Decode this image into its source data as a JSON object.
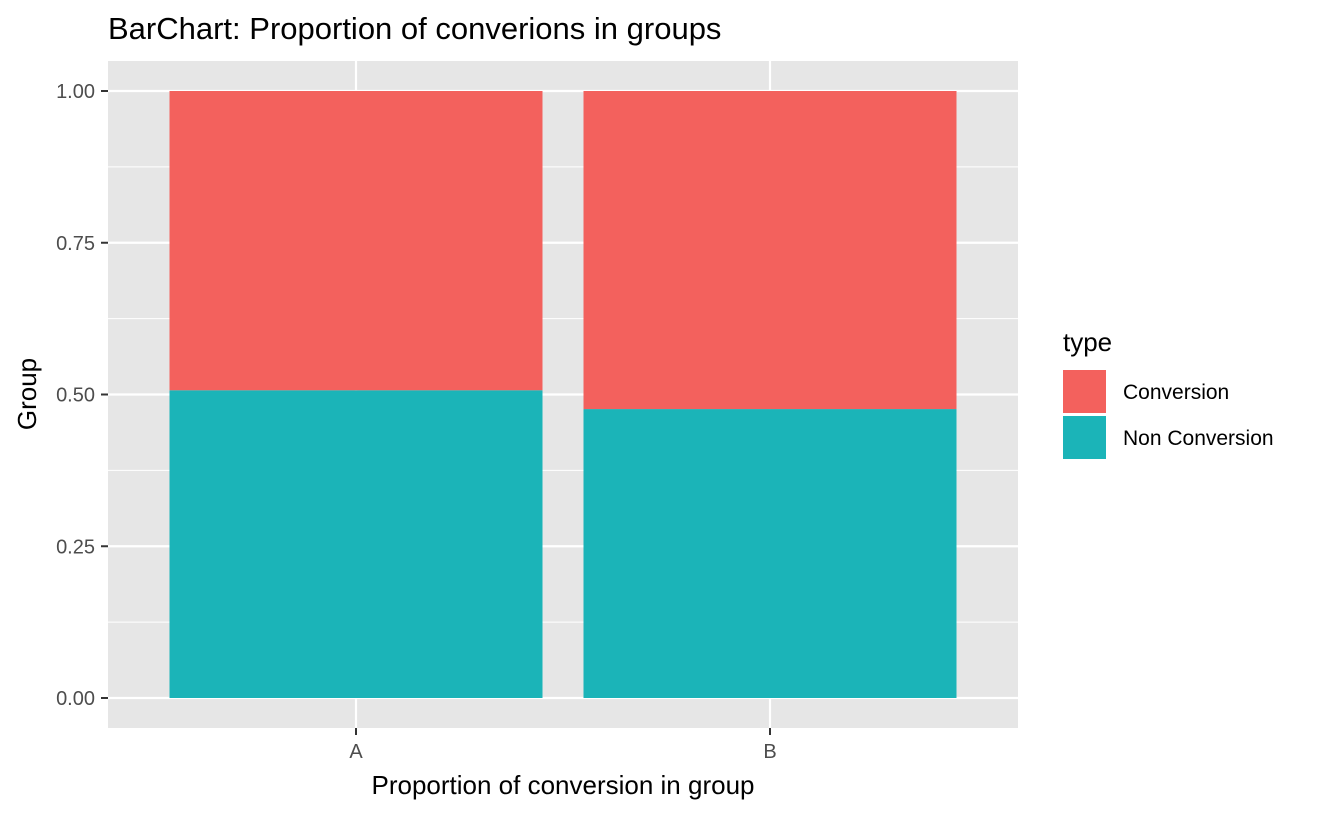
{
  "chart_data": {
    "type": "bar",
    "stacked": true,
    "title": "BarChart: Proportion of converions in groups",
    "xlabel": "Proportion of conversion in group",
    "ylabel": "Group",
    "categories": [
      "A",
      "B"
    ],
    "ylim": [
      0,
      1
    ],
    "yticks": [
      "0.00",
      "0.25",
      "0.50",
      "0.75",
      "1.00"
    ],
    "grid": true,
    "legend": {
      "title": "type",
      "placement": "right"
    },
    "series": [
      {
        "name": "Conversion",
        "color": "#F3615D",
        "values": [
          0.493,
          0.524
        ]
      },
      {
        "name": "Non Conversion",
        "color": "#1BB4B8",
        "values": [
          0.507,
          0.476
        ]
      }
    ],
    "stack_order": [
      "Non Conversion",
      "Conversion"
    ],
    "colors": {
      "panel_background": "#E6E6E6",
      "grid_line": "#FFFFFF",
      "tick_mark": "#333333"
    }
  }
}
